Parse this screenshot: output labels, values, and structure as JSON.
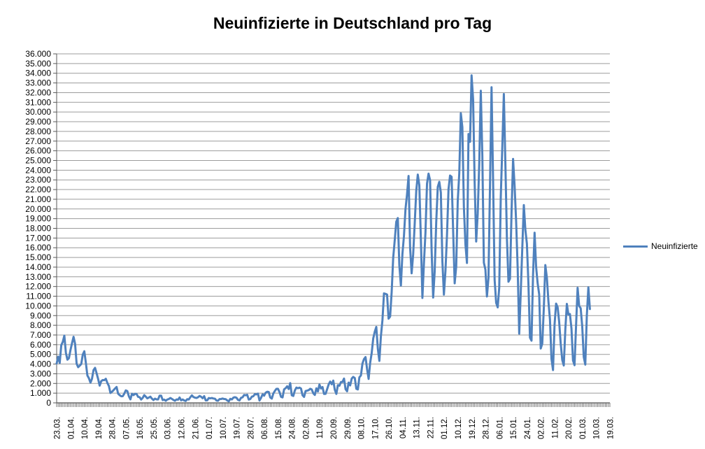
{
  "title": "Neuinfizierte in Deutschland pro Tag",
  "colors": {
    "series_line": "#4F81BD",
    "gridline": "#9C9C9C",
    "axis": "#595959",
    "text": "#000000",
    "background": "#FFFFFF"
  },
  "legend": {
    "series_label": "Neuinfizierte"
  },
  "chart_data": {
    "type": "line",
    "title": "Neuinfizierte in Deutschland pro Tag",
    "xlabel": "",
    "ylabel": "",
    "ylim": [
      0,
      36000
    ],
    "y_tick_step": 1000,
    "y_tick_labels": [
      "0",
      "1.000",
      "2.000",
      "3.000",
      "4.000",
      "5.000",
      "6.000",
      "7.000",
      "8.000",
      "9.000",
      "10.000",
      "11.000",
      "12.000",
      "13.000",
      "14.000",
      "15.000",
      "16.000",
      "17.000",
      "18.000",
      "19.000",
      "20.000",
      "21.000",
      "22.000",
      "23.000",
      "24.000",
      "25.000",
      "26.000",
      "27.000",
      "28.000",
      "29.000",
      "30.000",
      "31.000",
      "32.000",
      "33.000",
      "34.000",
      "35.000",
      "36.000"
    ],
    "grid": "horizontal",
    "legend_position": "right",
    "x_label_rotation": -90,
    "x_total_categories": 361,
    "x_tick_every": 9,
    "x_tick_labels": [
      "23.03.",
      "01.04.",
      "10.04.",
      "19.04.",
      "28.04.",
      "07.05.",
      "16.05.",
      "25.05.",
      "03.06.",
      "12.06.",
      "21.06.",
      "01.07.",
      "10.07.",
      "19.07.",
      "28.07.",
      "06.08.",
      "15.08.",
      "24.08.",
      "02.09.",
      "11.09.",
      "20.09.",
      "29.09.",
      "08.10.",
      "17.10.",
      "26.10.",
      "04.11.",
      "13.11.",
      "22.11.",
      "01.12.",
      "10.12.",
      "19.12.",
      "28.12.",
      "06.01.",
      "15.01.",
      "24.01.",
      "02.02.",
      "11.02.",
      "20.02.",
      "01.03.",
      "10.03.",
      "19.03."
    ],
    "series": [
      {
        "name": "Neuinfizierte",
        "color": "#4F81BD",
        "values": [
          4062,
          4764,
          4118,
          5940,
          6294,
          6933,
          5173,
          4450,
          4615,
          5453,
          6156,
          6813,
          6082,
          4031,
          3677,
          3834,
          4003,
          4974,
          5323,
          4133,
          2821,
          2537,
          2082,
          2486,
          3380,
          3609,
          3043,
          2458,
          1775,
          2237,
          2352,
          2337,
          2481,
          2055,
          1737,
          1018,
          1144,
          1304,
          1478,
          1639,
          945,
          793,
          679,
          685,
          947,
          1284,
          1209,
          667,
          357,
          933,
          798,
          933,
          913,
          620,
          583,
          342,
          513,
          797,
          638,
          460,
          548,
          638,
          431,
          289,
          432,
          362,
          353,
          741,
          738,
          286,
          333,
          213,
          342,
          394,
          507,
          407,
          301,
          214,
          350,
          318,
          555,
          258,
          348,
          247,
          192,
          378,
          345,
          580,
          770,
          601,
          537,
          503,
          577,
          712,
          630,
          477,
          687,
          256,
          262,
          498,
          466,
          503,
          446,
          422,
          239,
          219,
          390,
          397,
          442,
          395,
          378,
          248,
          159,
          412,
          351,
          534,
          583,
          529,
          305,
          249,
          522,
          569,
          815,
          781,
          833,
          340,
          390,
          633,
          684,
          902,
          870,
          955,
          240,
          509,
          879,
          741,
          1045,
          1147,
          1122,
          555,
          436,
          966,
          1226,
          1445,
          1449,
          1122,
          625,
          561,
          1390,
          1510,
          1707,
          1427,
          2034,
          782,
          711,
          1278,
          1576,
          1507,
          1571,
          1479,
          785,
          610,
          1218,
          1256,
          1311,
          1453,
          1378,
          988,
          814,
          1499,
          1176,
          1892,
          1484,
          1630,
          920,
          927,
          1407,
          1901,
          2194,
          1916,
          2297,
          1345,
          922,
          1821,
          1769,
          2143,
          2153,
          2507,
          1411,
          1192,
          2089,
          1798,
          2503,
          2673,
          2563,
          1450,
          1382,
          2639,
          2828,
          4058,
          4516,
          4721,
          3483,
          2467,
          4122,
          5132,
          6638,
          7334,
          7830,
          5587,
          4325,
          6868,
          8523,
          11287,
          11242,
          11176,
          8685,
          8900,
          11409,
          14964,
          16774,
          18681,
          19059,
          14177,
          12097,
          15352,
          17214,
          19990,
          21506,
          23399,
          16017,
          13363,
          15332,
          18487,
          21866,
          23542,
          22461,
          16947,
          10824,
          14419,
          17561,
          22609,
          23648,
          22964,
          15741,
          10864,
          13554,
          18633,
          22268,
          22806,
          21695,
          14611,
          11169,
          13604,
          17270,
          22046,
          23449,
          23318,
          17767,
          12332,
          14054,
          20815,
          23679,
          29875,
          28438,
          20200,
          16362,
          14432,
          27728,
          26923,
          33777,
          31300,
          22771,
          16643,
          19528,
          24740,
          32195,
          25533,
          14455,
          13755,
          10976,
          12892,
          22459,
          32552,
          22924,
          12690,
          10315,
          9847,
          11897,
          21237,
          26391,
          31849,
          24694,
          16946,
          12497,
          12802,
          19600,
          25164,
          22368,
          18678,
          13882,
          7141,
          11369,
          15974,
          20398,
          17862,
          16417,
          12257,
          6729,
          6412,
          13202,
          17553,
          14022,
          12321,
          11192,
          5608,
          6114,
          9705,
          14211,
          12908,
          10485,
          8616,
          4535,
          3379,
          8072,
          10237,
          9860,
          8354,
          6114,
          4426,
          3856,
          7556,
          10207,
          9113,
          9164,
          7676,
          4369,
          3883,
          8007,
          11869,
          9997,
          9762,
          7890,
          4732,
          3943,
          9019,
          11912,
          9674
        ]
      }
    ]
  }
}
